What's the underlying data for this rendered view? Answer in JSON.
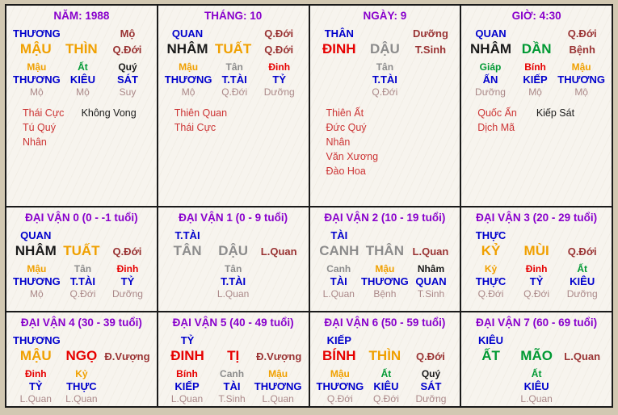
{
  "colors": {
    "purple": "#8800CC",
    "blue": "#0000CC",
    "orange": "#F0A000",
    "green": "#009933",
    "red": "#E60000",
    "maroon": "#993333",
    "rose": "#AA8888",
    "gray": "#8C8C8C",
    "black": "#1A1A1A",
    "star": "#CC3333"
  },
  "cells": [
    {
      "name": "year-pillar",
      "title": "NĂM: 1988",
      "top": {
        "god": "THƯƠNG",
        "stage": "Mộ"
      },
      "main": [
        {
          "t": "MẬU",
          "c": "orange"
        },
        {
          "t": "THÌN",
          "c": "orange"
        },
        {
          "t": "Q.Đới",
          "c": "maroon"
        }
      ],
      "hidden": [
        {
          "stem": {
            "t": "Mậu",
            "c": "orange"
          },
          "god": "THƯƠNG",
          "stage": "Mộ"
        },
        {
          "stem": {
            "t": "Ất",
            "c": "green"
          },
          "god": "KIÊU",
          "stage": "Mộ"
        },
        {
          "stem": {
            "t": "Quý",
            "c": "black"
          },
          "god": "SÁT",
          "stage": "Suy"
        }
      ],
      "stars": [
        [
          {
            "t": "Thái Cực",
            "c": "star"
          },
          {
            "t": "Không Vong",
            "c": "black"
          }
        ],
        [
          {
            "t": "Tú Quý Nhân",
            "c": "star"
          }
        ]
      ]
    },
    {
      "name": "month-pillar",
      "title": "THÁNG: 10",
      "top": {
        "god": "QUAN",
        "stage": "Q.Đới"
      },
      "main": [
        {
          "t": "NHÂM",
          "c": "black"
        },
        {
          "t": "TUẤT",
          "c": "orange"
        },
        {
          "t": "Q.Đới",
          "c": "maroon"
        }
      ],
      "hidden": [
        {
          "stem": {
            "t": "Mậu",
            "c": "orange"
          },
          "god": "THƯƠNG",
          "stage": "Mộ"
        },
        {
          "stem": {
            "t": "Tân",
            "c": "gray"
          },
          "god": "T.TÀI",
          "stage": "Q.Đới"
        },
        {
          "stem": {
            "t": "Đinh",
            "c": "red"
          },
          "god": "TỶ",
          "stage": "Dưỡng"
        }
      ],
      "stars": [
        [
          {
            "t": "Thiên Quan",
            "c": "star"
          }
        ],
        [
          {
            "t": "Thái Cực",
            "c": "star"
          }
        ]
      ]
    },
    {
      "name": "day-pillar",
      "title": "NGÀY: 9",
      "top": {
        "god": "THÂN",
        "stage": "Dưỡng"
      },
      "main": [
        {
          "t": "ĐINH",
          "c": "red"
        },
        {
          "t": "DẬU",
          "c": "gray"
        },
        {
          "t": "T.Sinh",
          "c": "maroon"
        }
      ],
      "hidden": [
        null,
        {
          "stem": {
            "t": "Tân",
            "c": "gray"
          },
          "god": "T.TÀI",
          "stage": "Q.Đới"
        },
        null
      ],
      "stars": [
        [
          {
            "t": "Thiên Ất",
            "c": "star"
          }
        ],
        [
          {
            "t": "Đức Quý Nhân",
            "c": "star"
          }
        ],
        [
          {
            "t": "Văn Xương",
            "c": "star"
          }
        ],
        [
          {
            "t": "Đào Hoa",
            "c": "star"
          }
        ]
      ]
    },
    {
      "name": "hour-pillar",
      "title": "GIỜ: 4:30",
      "top": {
        "god": "QUAN",
        "stage": "Q.Đới"
      },
      "main": [
        {
          "t": "NHÂM",
          "c": "black"
        },
        {
          "t": "DẦN",
          "c": "green"
        },
        {
          "t": "Bệnh",
          "c": "maroon"
        }
      ],
      "hidden": [
        {
          "stem": {
            "t": "Giáp",
            "c": "green"
          },
          "god": "ẤN",
          "stage": "Dưỡng"
        },
        {
          "stem": {
            "t": "Bính",
            "c": "red"
          },
          "god": "KIẾP",
          "stage": "Mộ"
        },
        {
          "stem": {
            "t": "Mậu",
            "c": "orange"
          },
          "god": "THƯƠNG",
          "stage": "Mộ"
        }
      ],
      "stars": [
        [
          {
            "t": "Quốc Ấn",
            "c": "star"
          },
          {
            "t": "Kiếp Sát",
            "c": "black"
          }
        ],
        [
          {
            "t": "Dịch Mã",
            "c": "star"
          }
        ]
      ]
    },
    {
      "name": "luck-period-0",
      "title": "ĐẠI VẬN 0 (0 - -1 tuổi)",
      "top": {
        "god": "QUAN"
      },
      "main": [
        {
          "t": "NHÂM",
          "c": "black"
        },
        {
          "t": "TUẤT",
          "c": "orange"
        },
        {
          "t": "Q.Đới",
          "c": "maroon"
        }
      ],
      "hidden": [
        {
          "stem": {
            "t": "Mậu",
            "c": "orange"
          },
          "god": "THƯƠNG",
          "stage": "Mộ"
        },
        {
          "stem": {
            "t": "Tân",
            "c": "gray"
          },
          "god": "T.TÀI",
          "stage": "Q.Đới"
        },
        {
          "stem": {
            "t": "Đinh",
            "c": "red"
          },
          "god": "TỶ",
          "stage": "Dưỡng"
        }
      ]
    },
    {
      "name": "luck-period-1",
      "title": "ĐẠI VẬN 1 (0 - 9 tuổi)",
      "top": {
        "god": "T.TÀI"
      },
      "main": [
        {
          "t": "TÂN",
          "c": "gray"
        },
        {
          "t": "DẬU",
          "c": "gray"
        },
        {
          "t": "L.Quan",
          "c": "maroon"
        }
      ],
      "hidden": [
        null,
        {
          "stem": {
            "t": "Tân",
            "c": "gray"
          },
          "god": "T.TÀI",
          "stage": "L.Quan"
        },
        null
      ]
    },
    {
      "name": "luck-period-2",
      "title": "ĐẠI VẬN 2 (10 - 19 tuổi)",
      "top": {
        "god": "TÀI"
      },
      "main": [
        {
          "t": "CANH",
          "c": "gray"
        },
        {
          "t": "THÂN",
          "c": "gray"
        },
        {
          "t": "L.Quan",
          "c": "maroon"
        }
      ],
      "hidden": [
        {
          "stem": {
            "t": "Canh",
            "c": "gray"
          },
          "god": "TÀI",
          "stage": "L.Quan"
        },
        {
          "stem": {
            "t": "Mậu",
            "c": "orange"
          },
          "god": "THƯƠNG",
          "stage": "Bệnh"
        },
        {
          "stem": {
            "t": "Nhâm",
            "c": "black"
          },
          "god": "QUAN",
          "stage": "T.Sinh"
        }
      ]
    },
    {
      "name": "luck-period-3",
      "title": "ĐẠI VẬN 3 (20 - 29 tuổi)",
      "top": {
        "god": "THỰC"
      },
      "main": [
        {
          "t": "KỶ",
          "c": "orange"
        },
        {
          "t": "MÙI",
          "c": "orange"
        },
        {
          "t": "Q.Đới",
          "c": "maroon"
        }
      ],
      "hidden": [
        {
          "stem": {
            "t": "Kỷ",
            "c": "orange"
          },
          "god": "THỰC",
          "stage": "Q.Đới"
        },
        {
          "stem": {
            "t": "Đinh",
            "c": "red"
          },
          "god": "TỶ",
          "stage": "Q.Đới"
        },
        {
          "stem": {
            "t": "Ất",
            "c": "green"
          },
          "god": "KIÊU",
          "stage": "Dưỡng"
        }
      ]
    },
    {
      "name": "luck-period-4",
      "title": "ĐẠI VẬN 4 (30 - 39 tuổi)",
      "top": {
        "god": "THƯƠNG"
      },
      "main": [
        {
          "t": "MẬU",
          "c": "orange"
        },
        {
          "t": "NGỌ",
          "c": "red"
        },
        {
          "t": "Đ.Vượng",
          "c": "maroon"
        }
      ],
      "hidden": [
        {
          "stem": {
            "t": "Đinh",
            "c": "red"
          },
          "god": "TỶ",
          "stage": "L.Quan"
        },
        {
          "stem": {
            "t": "Kỷ",
            "c": "orange"
          },
          "god": "THỰC",
          "stage": "L.Quan"
        },
        null
      ]
    },
    {
      "name": "luck-period-5",
      "title": "ĐẠI VẬN 5 (40 - 49 tuổi)",
      "top": {
        "god": "TỶ"
      },
      "main": [
        {
          "t": "ĐINH",
          "c": "red"
        },
        {
          "t": "TỊ",
          "c": "red"
        },
        {
          "t": "Đ.Vượng",
          "c": "maroon"
        }
      ],
      "hidden": [
        {
          "stem": {
            "t": "Bính",
            "c": "red"
          },
          "god": "KIẾP",
          "stage": "L.Quan"
        },
        {
          "stem": {
            "t": "Canh",
            "c": "gray"
          },
          "god": "TÀI",
          "stage": "T.Sinh"
        },
        {
          "stem": {
            "t": "Mậu",
            "c": "orange"
          },
          "god": "THƯƠNG",
          "stage": "L.Quan"
        }
      ]
    },
    {
      "name": "luck-period-6",
      "title": "ĐẠI VẬN 6 (50 - 59 tuổi)",
      "top": {
        "god": "KIẾP"
      },
      "main": [
        {
          "t": "BÍNH",
          "c": "red"
        },
        {
          "t": "THÌN",
          "c": "orange"
        },
        {
          "t": "Q.Đới",
          "c": "maroon"
        }
      ],
      "hidden": [
        {
          "stem": {
            "t": "Mậu",
            "c": "orange"
          },
          "god": "THƯƠNG",
          "stage": "Q.Đới"
        },
        {
          "stem": {
            "t": "Ất",
            "c": "green"
          },
          "god": "KIÊU",
          "stage": "Q.Đới"
        },
        {
          "stem": {
            "t": "Quý",
            "c": "black"
          },
          "god": "SÁT",
          "stage": "Dưỡng"
        }
      ]
    },
    {
      "name": "luck-period-7",
      "title": "ĐẠI VẬN 7 (60 - 69 tuổi)",
      "top": {
        "god": "KIÊU"
      },
      "main": [
        {
          "t": "ẤT",
          "c": "green"
        },
        {
          "t": "MÃO",
          "c": "green"
        },
        {
          "t": "L.Quan",
          "c": "maroon"
        }
      ],
      "hidden": [
        null,
        {
          "stem": {
            "t": "Ất",
            "c": "green"
          },
          "god": "KIÊU",
          "stage": "L.Quan"
        },
        null
      ]
    }
  ]
}
